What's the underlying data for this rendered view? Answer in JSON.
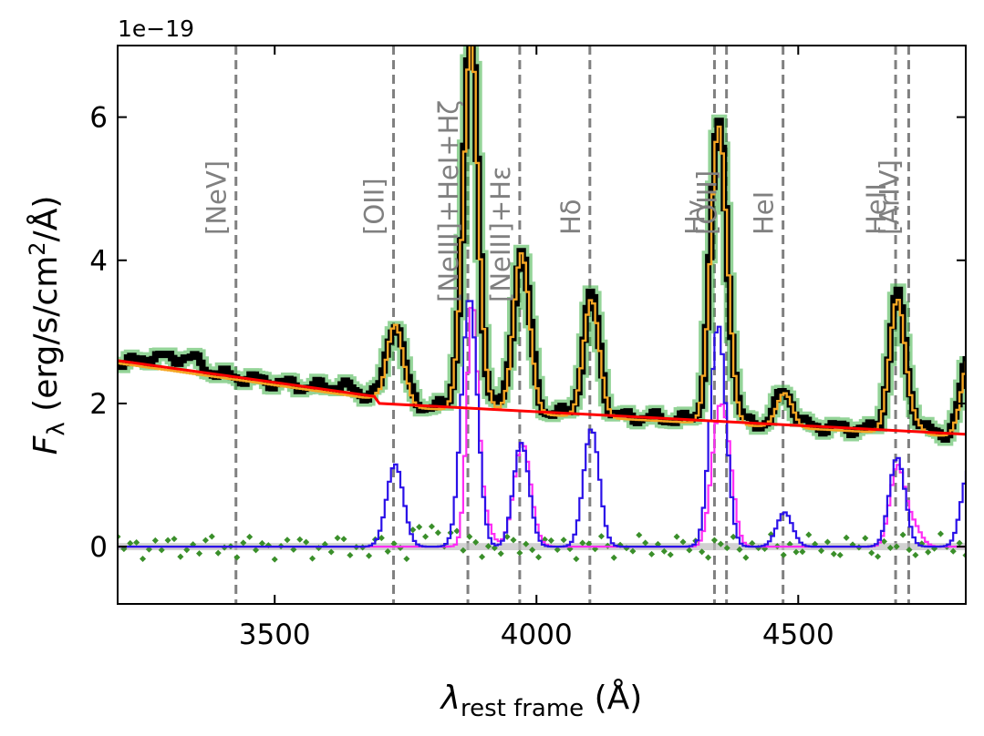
{
  "chart_data": {
    "type": "line",
    "title": "",
    "xlabel_symbol": "λ",
    "xlabel_sub": "rest frame",
    "xlabel_unit": "(Å)",
    "ylabel_symbol": "F",
    "ylabel_sub": "λ",
    "ylabel_unit_pre": "(erg/s/cm",
    "ylabel_unit_sup": "2",
    "ylabel_unit_post": "/Å)",
    "y_scale_label": "1e−19",
    "xlim": [
      3200,
      4820
    ],
    "ylim": [
      -0.8,
      7.0
    ],
    "x_ticks": [
      3500,
      4000,
      4500
    ],
    "x_tick_labels": [
      "3500",
      "4000",
      "4500"
    ],
    "y_ticks": [
      0,
      2,
      4,
      6
    ],
    "y_tick_labels": [
      "0",
      "2",
      "4",
      "6"
    ],
    "emission_lines": [
      {
        "label": "[NeV]",
        "x": 3426,
        "level": "upper"
      },
      {
        "label": "[OII]",
        "x": 3727,
        "level": "upper"
      },
      {
        "label": "[NeIII]+HeI+Hζ",
        "x": 3869,
        "level": "lower"
      },
      {
        "label": "[NeIII]+Hε",
        "x": 3968,
        "level": "lower"
      },
      {
        "label": "Hδ",
        "x": 4102,
        "level": "upper"
      },
      {
        "label": "Hγ",
        "x": 4340,
        "level": "upper"
      },
      {
        "label": "[OIII]",
        "x": 4363,
        "level": "upper"
      },
      {
        "label": "HeI",
        "x": 4471,
        "level": "upper"
      },
      {
        "label": "HeII",
        "x": 4686,
        "level": "upper"
      },
      {
        "label": "[ArIV]",
        "x": 4711,
        "level": "upper"
      }
    ],
    "continuum": {
      "name": "continuum",
      "x": [
        3200,
        3690,
        3700,
        4820
      ],
      "y": [
        2.6,
        2.1,
        2.0,
        1.57
      ]
    },
    "gaussians_blue": [
      {
        "mu": 3727,
        "amp": 1.15,
        "sigma": 16
      },
      {
        "mu": 3869,
        "amp": 3.5,
        "sigma": 15
      },
      {
        "mu": 3968,
        "amp": 1.45,
        "sigma": 15
      },
      {
        "mu": 4102,
        "amp": 1.65,
        "sigma": 15
      },
      {
        "mu": 4344,
        "amp": 3.1,
        "sigma": 15
      },
      {
        "mu": 4471,
        "amp": 0.48,
        "sigma": 15
      },
      {
        "mu": 4686,
        "amp": 1.25,
        "sigma": 15
      },
      {
        "mu": 4824,
        "amp": 1.1,
        "sigma": 15
      }
    ],
    "gaussians_magenta": [
      {
        "mu": 3874,
        "amp": 3.0,
        "sigma": 10
      },
      {
        "mu": 3888,
        "amp": 0.65,
        "sigma": 16
      },
      {
        "mu": 3970,
        "amp": 1.0,
        "sigma": 15
      },
      {
        "mu": 3970,
        "amp": 0.45,
        "sigma": 18
      },
      {
        "mu": 4344,
        "amp": 1.6,
        "sigma": 14
      },
      {
        "mu": 4363,
        "amp": 0.9,
        "sigma": 13
      },
      {
        "mu": 4686,
        "amp": 1.1,
        "sigma": 14
      },
      {
        "mu": 4716,
        "amp": 0.3,
        "sigma": 15
      }
    ],
    "data_wiggle": [
      {
        "mu": 3330,
        "amp": 0.18,
        "sigma": 25
      },
      {
        "mu": 3270,
        "amp": 0.12,
        "sigma": 20
      },
      {
        "mu": 3620,
        "amp": 0.08,
        "sigma": 25
      }
    ],
    "series": [
      {
        "name": "observed flux",
        "color": "#000000"
      },
      {
        "name": "observed flux error band",
        "color": "#3cb043"
      },
      {
        "name": "total model",
        "color": "#f5a623"
      },
      {
        "name": "continuum model",
        "color": "#ff0000"
      },
      {
        "name": "broad line components",
        "color": "#2a10e8"
      },
      {
        "name": "narrow line components",
        "color": "#ff2cf5"
      },
      {
        "name": "residuals",
        "color": "#3a8f2a"
      },
      {
        "name": "zero level",
        "color": "#9a9a9a"
      }
    ]
  }
}
